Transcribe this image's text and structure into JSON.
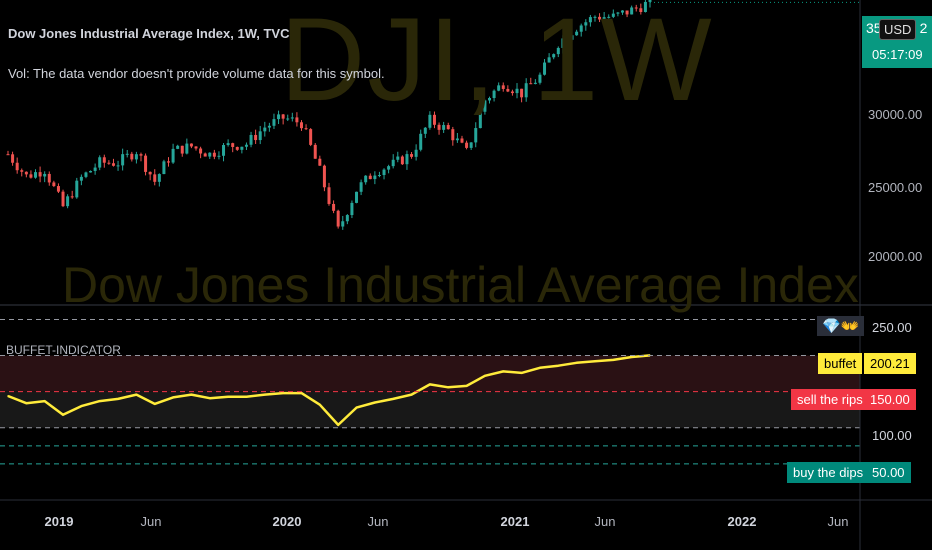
{
  "watermark": {
    "main": "DJI, 1W",
    "sub": "Dow Jones Industrial Average Index"
  },
  "legend": {
    "title": "Dow Jones Industrial Average Index, 1W, TVC",
    "vol_note": "Vol: The data vendor doesn't provide volume data for this symbol."
  },
  "price_axis": {
    "ticks": [
      "30000.00",
      "25000.00",
      "20000.00"
    ],
    "current_value": "35",
    "current_value_tail": "2",
    "countdown": "05:17:09",
    "currency": "USD"
  },
  "indicator": {
    "label": "BUFFET-INDICATOR",
    "emoji": "💎👐",
    "tags": {
      "top": "250.00",
      "buffet_label": "buffet",
      "buffet_value": "200.21",
      "sell_label": "sell the rips",
      "sell_value": "150.00",
      "mid": "100.00",
      "buy_label": "buy the dips",
      "buy_value": "50.00"
    }
  },
  "time_axis": [
    "2019",
    "Jun",
    "2020",
    "Jun",
    "2021",
    "Jun",
    "2022",
    "Jun"
  ],
  "colors": {
    "up": "#26a69a",
    "down": "#ef5350",
    "line": "#ffeb3b",
    "sell_zone": "#2a1114",
    "mid_zone": "#181818",
    "current": "#089981",
    "sell_tag": "#f23645",
    "buy_tag": "#00897b"
  },
  "chart_data": [
    {
      "type": "candlestick",
      "title": "Dow Jones Industrial Average Index, 1W, TVC",
      "x": [
        "2018-09",
        "2018-10",
        "2018-11",
        "2018-12",
        "2019-01",
        "2019-02",
        "2019-03",
        "2019-04",
        "2019-05",
        "2019-06",
        "2019-07",
        "2019-08",
        "2019-09",
        "2019-10",
        "2019-11",
        "2019-12",
        "2020-01",
        "2020-02",
        "2020-03",
        "2020-04",
        "2020-05",
        "2020-06",
        "2020-07",
        "2020-08",
        "2020-09",
        "2020-10",
        "2020-11",
        "2020-12",
        "2021-01",
        "2021-02",
        "2021-03",
        "2021-04",
        "2021-05",
        "2021-06",
        "2021-07",
        "2021-08"
      ],
      "close": [
        26400,
        25100,
        25500,
        23300,
        24990,
        25900,
        25900,
        26600,
        24800,
        26600,
        26860,
        26400,
        26900,
        27000,
        28000,
        28540,
        28250,
        25400,
        21900,
        24300,
        25400,
        25800,
        26400,
        28400,
        27800,
        26500,
        29600,
        30600,
        29990,
        31000,
        32980,
        33900,
        34530,
        34500,
        34900,
        35360
      ],
      "ylim": [
        17500,
        35500
      ],
      "yticks": [
        20000,
        25000,
        30000
      ]
    },
    {
      "type": "line",
      "title": "BUFFET-INDICATOR",
      "x": [
        "2018-09",
        "2018-10",
        "2018-11",
        "2018-12",
        "2019-01",
        "2019-02",
        "2019-03",
        "2019-04",
        "2019-05",
        "2019-06",
        "2019-07",
        "2019-08",
        "2019-09",
        "2019-10",
        "2019-11",
        "2019-12",
        "2020-01",
        "2020-02",
        "2020-03",
        "2020-04",
        "2020-05",
        "2020-06",
        "2020-07",
        "2020-08",
        "2020-09",
        "2020-10",
        "2020-11",
        "2020-12",
        "2021-01",
        "2021-02",
        "2021-03",
        "2021-04",
        "2021-05",
        "2021-06",
        "2021-07",
        "2021-08"
      ],
      "values": [
        144,
        134,
        137,
        118,
        130,
        137,
        140,
        146,
        133,
        142,
        146,
        141,
        143,
        143,
        146,
        148,
        148,
        132,
        104,
        128,
        135,
        140,
        146,
        160,
        156,
        158,
        172,
        178,
        176,
        183,
        186,
        190,
        192,
        194,
        198,
        200.21
      ],
      "bands": [
        250,
        200,
        150,
        100,
        50
      ],
      "ylim": [
        0,
        270
      ],
      "zones": {
        "sell_the_rips": [
          150,
          200
        ],
        "neutral": [
          100,
          150
        ]
      }
    }
  ]
}
